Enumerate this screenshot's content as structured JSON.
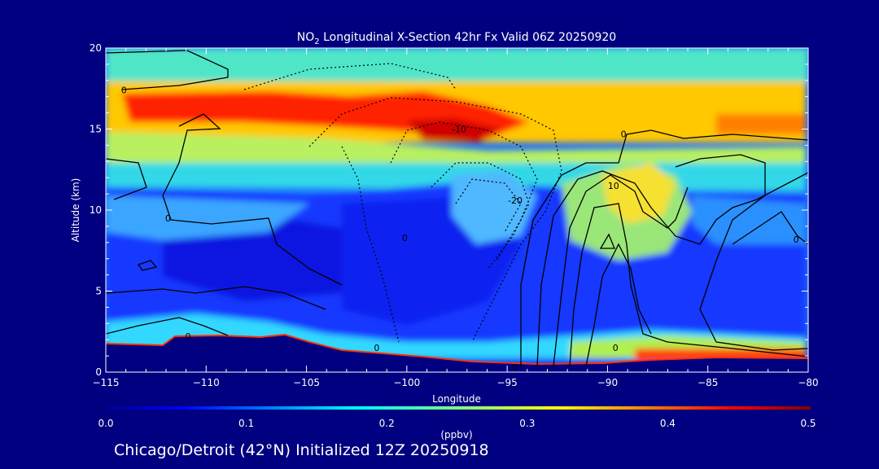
{
  "chart_data": {
    "type": "heatmap",
    "title_prefix": "NO",
    "title_sub": "2",
    "title_suffix": " Longitudinal X-Section 42hr  Fx Valid 06Z 20250920",
    "xlabel": "Longitude",
    "ylabel": "Altitude (km)",
    "xlim": [
      -115,
      -80
    ],
    "ylim": [
      0,
      20
    ],
    "x_ticks": [
      -115,
      -110,
      -105,
      -100,
      -95,
      -90,
      -85,
      -80
    ],
    "x_tick_labels": [
      "−115",
      "−110",
      "−105",
      "−100",
      "−95",
      "−90",
      "−85",
      "−80"
    ],
    "y_ticks": [
      0,
      5,
      10,
      15,
      20
    ],
    "y_tick_labels": [
      "0",
      "5",
      "10",
      "15",
      "20"
    ],
    "colorbar": {
      "label": "(ppbv)",
      "min": 0.0,
      "max": 0.5,
      "ticks": [
        0.0,
        0.1,
        0.2,
        0.3,
        0.4,
        0.5
      ],
      "tick_labels": [
        "0.0",
        "0.1",
        "0.2",
        "0.3",
        "0.4",
        "0.5"
      ],
      "colormap": "jet"
    },
    "contour_labels": [
      {
        "text": "0",
        "lon": -114.1,
        "alt": 17.4
      },
      {
        "text": "-10",
        "lon": -97.4,
        "alt": 15.0
      },
      {
        "text": "0",
        "lon": -89.2,
        "alt": 14.7
      },
      {
        "text": "10",
        "lon": -89.7,
        "alt": 11.5
      },
      {
        "text": "-20",
        "lon": -94.6,
        "alt": 10.6
      },
      {
        "text": "0",
        "lon": -111.9,
        "alt": 9.5
      },
      {
        "text": "0",
        "lon": -100.1,
        "alt": 8.3
      },
      {
        "text": "0",
        "lon": -80.6,
        "alt": 8.2
      },
      {
        "text": "0",
        "lon": -110.9,
        "alt": 2.2
      },
      {
        "text": "0",
        "lon": -101.5,
        "alt": 1.5
      },
      {
        "text": "0",
        "lon": -89.6,
        "alt": 1.5
      },
      {
        "text": "0",
        "lon": -94.6,
        "alt": 0.3
      }
    ]
  },
  "caption": "Chicago/Detroit (42°N) Initialized 12Z 20250918"
}
